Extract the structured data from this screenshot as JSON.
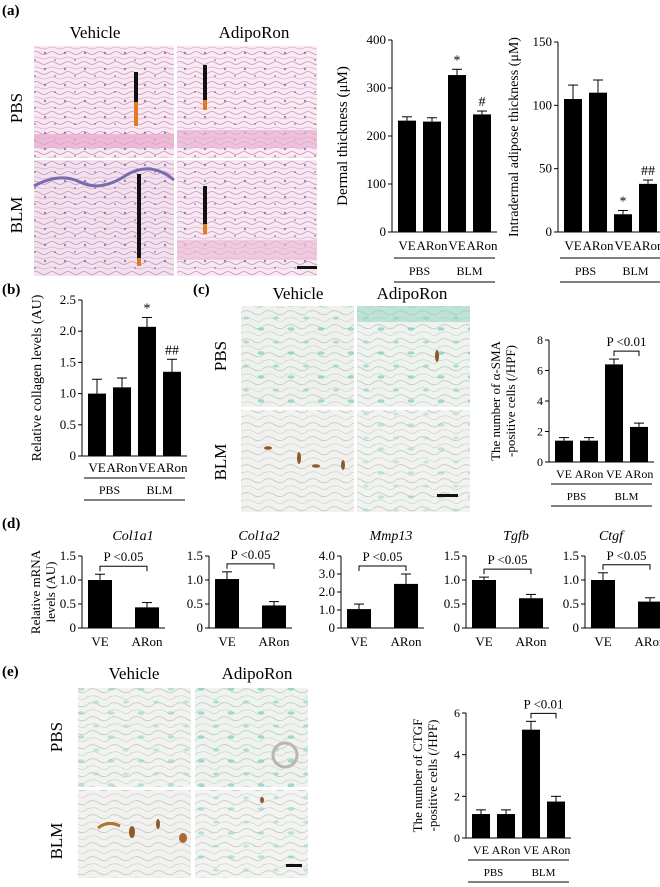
{
  "panels": {
    "a": {
      "label": "(a)",
      "col_headers": [
        "Vehicle",
        "AdipoRon"
      ],
      "row_headers": [
        "PBS",
        "BLM"
      ]
    },
    "b": {
      "label": "(b)"
    },
    "c": {
      "label": "(c)",
      "col_headers": [
        "Vehicle",
        "AdipoRon"
      ],
      "row_headers": [
        "PBS",
        "BLM"
      ]
    },
    "d": {
      "label": "(d)"
    },
    "e": {
      "label": "(e)",
      "col_headers": [
        "Vehicle",
        "AdipoRon"
      ],
      "row_headers": [
        "PBS",
        "BLM"
      ]
    }
  },
  "colors": {
    "bar": "#000000",
    "he_stain": "#e8b4d4",
    "methyl_green": "#6cc4b4",
    "dab_brown": "#8b5a2b",
    "scale_orange": "#e07b20"
  },
  "chart_data": [
    {
      "id": "a1",
      "type": "bar",
      "ylabel": "Dermal thickness (μM)",
      "ylim": [
        0,
        400
      ],
      "yticks": [
        "0",
        "100",
        "200",
        "300",
        "400"
      ],
      "categories": [
        "VE",
        "ARon",
        "VE",
        "ARon"
      ],
      "groups": [
        "PBS",
        "BLM"
      ],
      "values": [
        232,
        230,
        327,
        245
      ],
      "errors": [
        8,
        8,
        12,
        7
      ],
      "annotations": [
        {
          "bar": 2,
          "text": "*"
        },
        {
          "bar": 3,
          "text": "#"
        }
      ]
    },
    {
      "id": "a2",
      "type": "bar",
      "ylabel": "Intradermal adipose thickness (μM)",
      "ylim": [
        0,
        150
      ],
      "yticks": [
        "0",
        "50",
        "100",
        "150"
      ],
      "categories": [
        "VE",
        "ARon",
        "VE",
        "ARon"
      ],
      "groups": [
        "PBS",
        "BLM"
      ],
      "values": [
        105,
        110,
        14,
        38
      ],
      "errors": [
        11,
        10,
        3,
        3
      ],
      "annotations": [
        {
          "bar": 2,
          "text": "*"
        },
        {
          "bar": 3,
          "text": "##"
        }
      ]
    },
    {
      "id": "b",
      "type": "bar",
      "ylabel": "Relative collagen levels (AU)",
      "ylim": [
        0,
        2.5
      ],
      "yticks": [
        "0",
        "0.5",
        "1.0",
        "1.5",
        "2.0",
        "2.5"
      ],
      "categories": [
        "VE",
        "ARon",
        "VE",
        "ARon"
      ],
      "groups": [
        "PBS",
        "BLM"
      ],
      "values": [
        1.0,
        1.1,
        2.07,
        1.35
      ],
      "errors": [
        0.23,
        0.15,
        0.15,
        0.2
      ],
      "annotations": [
        {
          "bar": 2,
          "text": "*"
        },
        {
          "bar": 3,
          "text": "##"
        }
      ]
    },
    {
      "id": "c",
      "type": "bar",
      "ylabel": [
        "The number of α-SMA",
        "-positive cells (/HPF)"
      ],
      "ylim": [
        0,
        8
      ],
      "yticks": [
        "0",
        "2",
        "4",
        "6",
        "8"
      ],
      "categories": [
        "VE",
        "ARon",
        "VE",
        "ARon"
      ],
      "groups": [
        "PBS",
        "BLM"
      ],
      "values": [
        1.4,
        1.4,
        6.4,
        2.3
      ],
      "errors": [
        0.2,
        0.2,
        0.35,
        0.25
      ],
      "bracket": {
        "from": 2,
        "to": 3,
        "text": "P <0.01"
      }
    },
    {
      "id": "d1",
      "type": "bar",
      "gene": "Col1a1",
      "ylabel": [
        "Relative mRNA",
        "levels (AU)"
      ],
      "ylim": [
        0,
        1.5
      ],
      "yticks": [
        "0",
        "0.5",
        "1.0",
        "1.5"
      ],
      "categories": [
        "VE",
        "ARon"
      ],
      "values": [
        1.0,
        0.43
      ],
      "errors": [
        0.12,
        0.1
      ],
      "bracket": {
        "from": 0,
        "to": 1,
        "text": "P <0.05"
      }
    },
    {
      "id": "d2",
      "type": "bar",
      "gene": "Col1a2",
      "ylim": [
        0,
        1.5
      ],
      "yticks": [
        "0",
        "0.5",
        "1.0",
        "1.5"
      ],
      "categories": [
        "VE",
        "ARon"
      ],
      "values": [
        1.02,
        0.47
      ],
      "errors": [
        0.15,
        0.08
      ],
      "bracket": {
        "from": 0,
        "to": 1,
        "text": "P <0.05"
      }
    },
    {
      "id": "d3",
      "type": "bar",
      "gene": "Mmp13",
      "ylim": [
        0,
        4.0
      ],
      "yticks": [
        "0",
        "1.0",
        "2.0",
        "3.0",
        "4.0"
      ],
      "categories": [
        "VE",
        "ARon"
      ],
      "values": [
        1.05,
        2.45
      ],
      "errors": [
        0.28,
        0.55
      ],
      "bracket": {
        "from": 0,
        "to": 1,
        "text": "P <0.05"
      }
    },
    {
      "id": "d4",
      "type": "bar",
      "gene": "Tgfb",
      "ylim": [
        0,
        1.5
      ],
      "yticks": [
        "0",
        "0.5",
        "1.0",
        "1.5"
      ],
      "categories": [
        "VE",
        "ARon"
      ],
      "values": [
        1.0,
        0.62
      ],
      "errors": [
        0.06,
        0.08
      ],
      "bracket": {
        "from": 0,
        "to": 1,
        "text": "P <0.05"
      }
    },
    {
      "id": "d5",
      "type": "bar",
      "gene": "Ctgf",
      "ylim": [
        0,
        1.5
      ],
      "yticks": [
        "0",
        "0.5",
        "1.0",
        "1.5"
      ],
      "categories": [
        "VE",
        "ARon"
      ],
      "values": [
        1.0,
        0.55
      ],
      "errors": [
        0.15,
        0.08
      ],
      "bracket": {
        "from": 0,
        "to": 1,
        "text": "P <0.05"
      }
    },
    {
      "id": "e",
      "type": "bar",
      "ylabel": [
        "The number of CTGF",
        "-positive cells (/HPF)"
      ],
      "ylim": [
        0,
        6
      ],
      "yticks": [
        "0",
        "2",
        "4",
        "6"
      ],
      "categories": [
        "VE",
        "ARon",
        "VE",
        "ARon"
      ],
      "groups": [
        "PBS",
        "BLM"
      ],
      "values": [
        1.15,
        1.15,
        5.2,
        1.75
      ],
      "errors": [
        0.2,
        0.2,
        0.4,
        0.25
      ],
      "bracket": {
        "from": 2,
        "to": 3,
        "text": "P <0.01"
      }
    }
  ]
}
